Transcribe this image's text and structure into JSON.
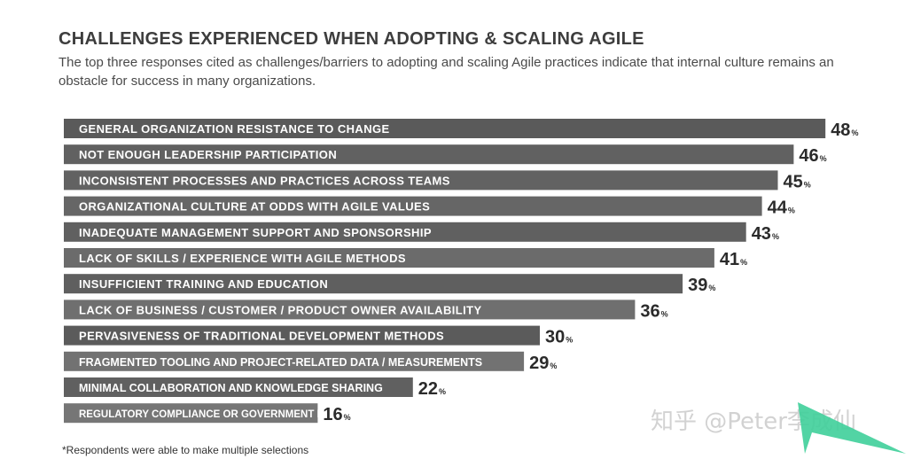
{
  "header": {
    "title": "CHALLENGES EXPERIENCED WHEN ADOPTING & SCALING AGILE",
    "subtitle": "The top three responses cited as challenges/barriers to adopting and scaling Agile practices indicate that internal culture remains an obstacle for success in many organizations."
  },
  "chart_data": {
    "type": "bar",
    "orientation": "horizontal",
    "title": "CHALLENGES EXPERIENCED WHEN ADOPTING & SCALING AGILE",
    "categories": [
      "GENERAL ORGANIZATION RESISTANCE TO CHANGE",
      "NOT ENOUGH LEADERSHIP PARTICIPATION",
      "INCONSISTENT PROCESSES AND PRACTICES ACROSS TEAMS",
      "ORGANIZATIONAL CULTURE AT ODDS WITH AGILE VALUES",
      "INADEQUATE MANAGEMENT SUPPORT AND SPONSORSHIP",
      "LACK OF SKILLS / EXPERIENCE WITH AGILE METHODS",
      "INSUFFICIENT TRAINING AND EDUCATION",
      "LACK OF BUSINESS / CUSTOMER / PRODUCT OWNER AVAILABILITY",
      "PERVASIVENESS OF TRADITIONAL DEVELOPMENT METHODS",
      "FRAGMENTED TOOLING AND PROJECT-RELATED DATA / MEASUREMENTS",
      "MINIMAL COLLABORATION AND KNOWLEDGE SHARING",
      "REGULATORY COMPLIANCE OR GOVERNMENT ISSUE"
    ],
    "values": [
      48,
      46,
      45,
      44,
      43,
      41,
      39,
      36,
      30,
      29,
      22,
      16
    ],
    "value_suffix": "%",
    "grid": false,
    "legend": false,
    "colors": [
      "#5a5a5a",
      "#616161",
      "#626262",
      "#666666",
      "#606060",
      "#6b6b6b",
      "#5f5f5f",
      "#6f6f6f",
      "#5b5b5b",
      "#727272",
      "#606060",
      "#767676"
    ]
  },
  "footnote": "*Respondents were able to make multiple selections",
  "watermark": "知乎 @Peter李成仙",
  "colors": {
    "title": "#3d3d3d",
    "watermark_logo": "#3fcf9a"
  }
}
